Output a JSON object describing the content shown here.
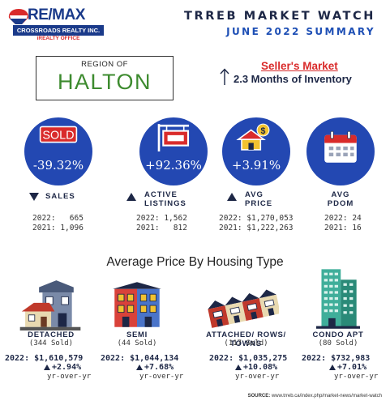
{
  "brand": {
    "name": "RE/MAX",
    "office": "CROSSROADS REALTY INC.",
    "tagline": "iREALTY OFFICE"
  },
  "header": {
    "title": "TRREB MARKET WATCH",
    "subtitle": "JUNE 2022 SUMMARY"
  },
  "region": {
    "label": "REGION OF",
    "name": "HALTON"
  },
  "market": {
    "title": "Seller's Market",
    "detail": "2.3 Months of Inventory",
    "direction": "up"
  },
  "stats": [
    {
      "value": "-39.32%",
      "direction": "down",
      "label": [
        "SALES"
      ],
      "lines": [
        "2022:   665",
        "2021: 1,096"
      ],
      "icon": "sold-sign-icon"
    },
    {
      "value": "+92.36%",
      "direction": "up",
      "label": [
        "ACTIVE",
        "LISTINGS"
      ],
      "lines": [
        "2022: 1,562",
        "2021:   812"
      ],
      "icon": "for-sale-sign-icon"
    },
    {
      "value": "+3.91%",
      "direction": "up",
      "label": [
        "AVG",
        "PRICE"
      ],
      "lines": [
        "2022: $1,270,053",
        "2021: $1,222,263"
      ],
      "icon": "house-money-icon"
    },
    {
      "value": "",
      "direction": "none",
      "label": [
        "AVG",
        "PDOM"
      ],
      "lines": [
        "2022: 24",
        "2021: 16"
      ],
      "icon": "calendar-icon"
    }
  ],
  "section": {
    "title": "Average Price By Housing Type"
  },
  "housing_types": [
    {
      "name": "DETACHED",
      "sold": "(344 Sold)",
      "price": "2022: $1,610,579",
      "change": "+2.94%",
      "note": "yr-over-yr",
      "icon": "detached-house-icon"
    },
    {
      "name": "SEMI",
      "sold": "(44 Sold)",
      "price": "2022: $1,044,134",
      "change": "+7.68%",
      "note": "yr-over-yr",
      "icon": "semi-house-icon"
    },
    {
      "name": "ATTACHED/ ROWS/ TOWNS",
      "sold": "(117 Sold)",
      "price": "2022: $1,035,275",
      "change": "+10.08%",
      "note": "yr-over-yr",
      "icon": "townhouse-icon"
    },
    {
      "name": "CONDO APT",
      "sold": "(80 Sold)",
      "price": "2022: $732,983",
      "change": "+7.01%",
      "note": "yr-over-yr",
      "icon": "condo-building-icon"
    }
  ],
  "source": {
    "label": "SOURCE:",
    "url": "www.trreb.ca/index.php/market-news/market-watch"
  },
  "colors": {
    "navy": "#1d2746",
    "blue": "#2348b2",
    "red": "#d92b2b",
    "green": "#3d8b2f"
  }
}
